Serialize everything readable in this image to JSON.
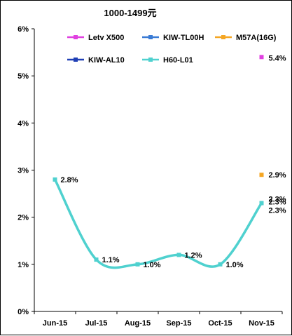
{
  "chart_data": {
    "type": "line",
    "title": "1000-1499元",
    "xlabel": "",
    "ylabel": "",
    "categories": [
      "Jun-15",
      "Jul-15",
      "Aug-15",
      "Sep-15",
      "Oct-15",
      "Nov-15"
    ],
    "ylim": [
      0,
      6
    ],
    "yticks": [
      "0%",
      "1%",
      "2%",
      "3%",
      "4%",
      "5%",
      "6%"
    ],
    "grid": false,
    "legend_position": "top",
    "series": [
      {
        "name": "Letv X500",
        "color": "#e040e0",
        "marker": "plus",
        "values": [
          null,
          null,
          null,
          null,
          null,
          5.4
        ],
        "labels": [
          "",
          "",
          "",
          "",
          "",
          "5.4%"
        ]
      },
      {
        "name": "KIW-TL00H",
        "color": "#3a7bd5",
        "marker": "plus",
        "values": [
          null,
          null,
          null,
          null,
          null,
          2.3
        ],
        "labels": [
          "",
          "",
          "",
          "",
          "",
          "2.3%"
        ]
      },
      {
        "name": "M57A(16G)",
        "color": "#f5a623",
        "marker": "plus",
        "values": [
          null,
          null,
          null,
          null,
          null,
          2.9
        ],
        "labels": [
          "",
          "",
          "",
          "",
          "",
          "2.9%"
        ]
      },
      {
        "name": "KIW-AL10",
        "color": "#1f3fb5",
        "marker": "plus",
        "values": [
          null,
          null,
          null,
          null,
          null,
          2.3
        ],
        "labels": [
          "",
          "",
          "",
          "",
          "",
          "2.3%"
        ]
      },
      {
        "name": "H60-L01",
        "color": "#4fd1cf",
        "marker": "plus",
        "values": [
          2.8,
          1.1,
          1.0,
          1.2,
          1.0,
          2.3
        ],
        "labels": [
          "2.8%",
          "1.1%",
          "1.0%",
          "1.2%",
          "1.0%",
          "2.3%"
        ]
      }
    ]
  }
}
